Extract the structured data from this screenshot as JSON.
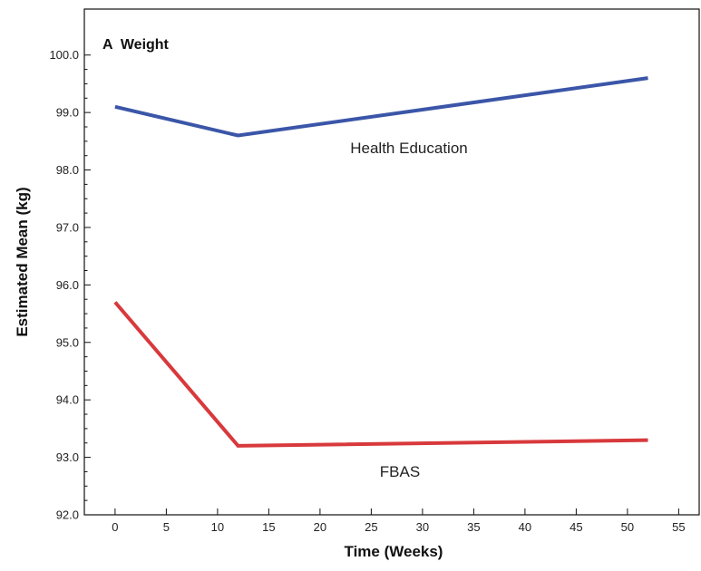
{
  "chart_data": {
    "type": "line",
    "title": "A  Weight",
    "xlabel": "Time (Weeks)",
    "ylabel": "Estimated Mean (kg)",
    "xlim": [
      -3,
      57
    ],
    "ylim": [
      92.0,
      100.8
    ],
    "xticks": [
      0,
      5,
      10,
      15,
      20,
      25,
      30,
      35,
      40,
      45,
      50,
      55
    ],
    "xtick_labels": [
      "0",
      "5",
      "10",
      "15",
      "20",
      "25",
      "30",
      "35",
      "40",
      "45",
      "50",
      "55"
    ],
    "yticks": [
      92.0,
      93.0,
      94.0,
      95.0,
      96.0,
      97.0,
      98.0,
      99.0,
      100.0
    ],
    "ytick_labels": [
      "92.0",
      "93.0",
      "94.0",
      "95.0",
      "96.0",
      "97.0",
      "98.0",
      "99.0",
      "100.0"
    ],
    "grid": false,
    "legend": "none",
    "series": [
      {
        "name": "Health Education",
        "color": "#3b56a8",
        "x": [
          0,
          12,
          52
        ],
        "y": [
          99.1,
          98.6,
          99.6
        ]
      },
      {
        "name": "FBAS",
        "color": "#d8393c",
        "x": [
          0,
          12,
          52
        ],
        "y": [
          95.7,
          93.2,
          93.3
        ]
      }
    ]
  }
}
